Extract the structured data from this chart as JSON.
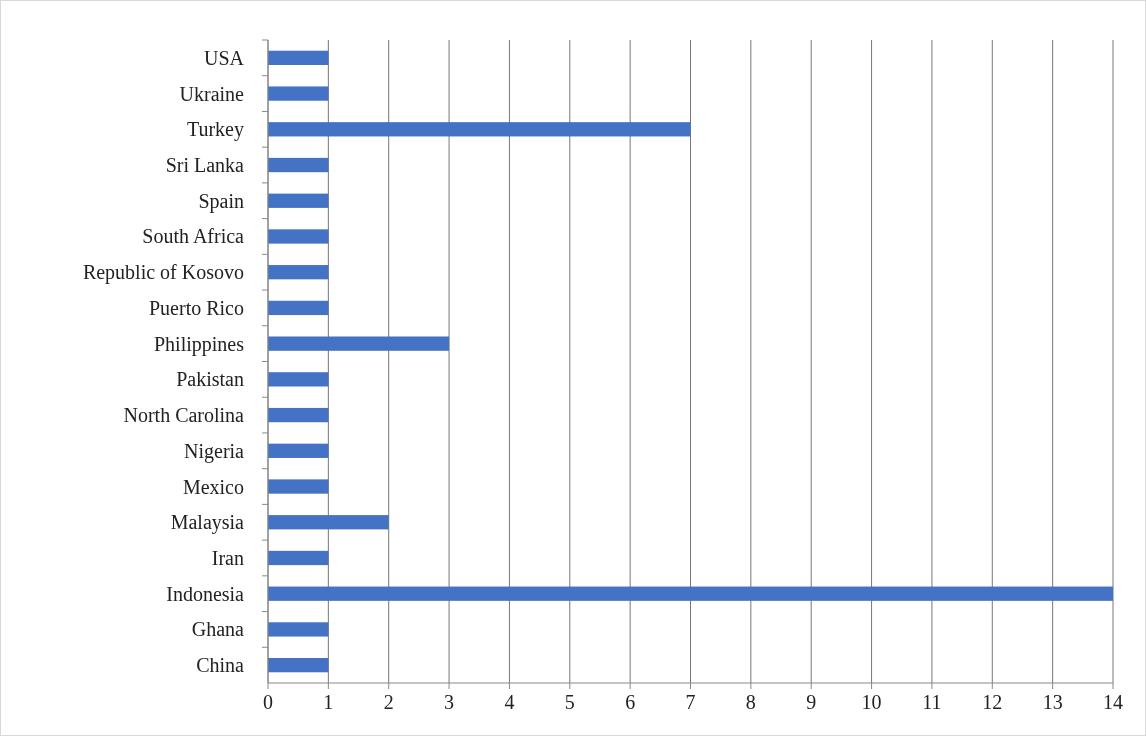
{
  "chart_data": {
    "type": "bar",
    "orientation": "horizontal",
    "categories": [
      "USA",
      "Ukraine",
      "Turkey",
      "Sri Lanka",
      "Spain",
      "South Africa",
      "Republic of Kosovo",
      "Puerto Rico",
      "Philippines",
      "Pakistan",
      "North Carolina",
      "Nigeria",
      "Mexico",
      "Malaysia",
      "Iran",
      "Indonesia",
      "Ghana",
      "China"
    ],
    "values": [
      1,
      1,
      7,
      1,
      1,
      1,
      1,
      1,
      3,
      1,
      1,
      1,
      1,
      2,
      1,
      14,
      1,
      1
    ],
    "color": "#4472c4",
    "xlim": [
      0,
      14
    ],
    "xticks": [
      0,
      1,
      2,
      3,
      4,
      5,
      6,
      7,
      8,
      9,
      10,
      11,
      12,
      13,
      14
    ],
    "grid": "x"
  }
}
